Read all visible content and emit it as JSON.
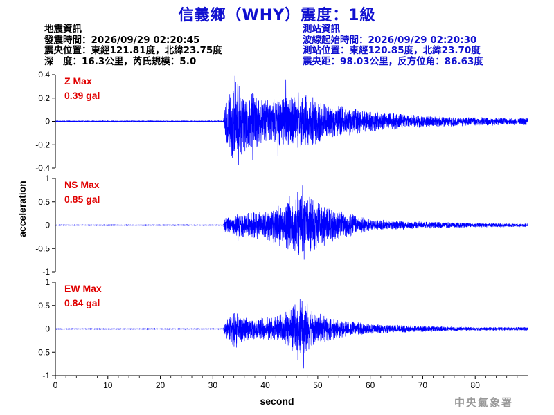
{
  "header": {
    "title": "信義鄉（WHY）震度：1級",
    "quake_info": {
      "heading": "地震資訊",
      "origin_time": "發震時間：2026/09/29 02:20:45",
      "epicenter": "震央位置：東經121.81度，北緯23.75度",
      "depth_magnitude": "深　度：16.3公里，芮氏規模：5.0"
    },
    "station_info": {
      "heading": "測站資訊",
      "onset_time": "波線起始時間：2026/09/29 02:20:30",
      "station_location": "測站位置：東經120.85度，北緯23.70度",
      "distance_azimuth": "震央距：98.03公里，反方位角：86.63度"
    }
  },
  "credit": "中央氣象署",
  "colors": {
    "title": "#1010d0",
    "trace": "#0000ff",
    "max_label": "#e00000"
  },
  "chart_data": {
    "type": "line",
    "xlabel": "second",
    "ylabel": "acceleration",
    "xlim": [
      0,
      90
    ],
    "xticks": [
      0,
      10,
      20,
      30,
      40,
      50,
      60,
      70,
      80
    ],
    "grid": false,
    "panels": [
      {
        "name": "Z",
        "max_label": "Z Max",
        "max_value": "0.39 gal",
        "ylim": [
          -0.4,
          0.4
        ],
        "yticks": [
          -0.4,
          -0.2,
          0,
          0.2,
          0.4
        ],
        "ytick_labels": [
          "-0.4",
          "-0.2",
          "0",
          "0.2",
          "0.4"
        ],
        "noise_amplitude": 0.004,
        "envelope": [
          [
            0,
            0.004
          ],
          [
            32,
            0.004
          ],
          [
            32.3,
            0.12
          ],
          [
            34,
            0.3
          ],
          [
            36,
            0.22
          ],
          [
            40,
            0.15
          ],
          [
            44,
            0.17
          ],
          [
            47,
            0.2
          ],
          [
            52,
            0.12
          ],
          [
            60,
            0.07
          ],
          [
            70,
            0.04
          ],
          [
            80,
            0.03
          ],
          [
            90,
            0.025
          ]
        ],
        "peaks": [
          [
            34.2,
            0.39
          ],
          [
            34.9,
            -0.37
          ],
          [
            43.9,
            0.36
          ],
          [
            42.4,
            -0.3
          ],
          [
            37.6,
            -0.33
          ]
        ]
      },
      {
        "name": "NS",
        "max_label": "NS Max",
        "max_value": "0.85 gal",
        "ylim": [
          -1,
          1
        ],
        "yticks": [
          -1,
          -0.5,
          0,
          0.5,
          1
        ],
        "ytick_labels": [
          "-1",
          "-0.5",
          "0",
          "0.5",
          "1"
        ],
        "noise_amplitude": 0.005,
        "envelope": [
          [
            0,
            0.005
          ],
          [
            32,
            0.005
          ],
          [
            32.3,
            0.12
          ],
          [
            35,
            0.2
          ],
          [
            40,
            0.25
          ],
          [
            44,
            0.4
          ],
          [
            47,
            0.6
          ],
          [
            49,
            0.45
          ],
          [
            52,
            0.3
          ],
          [
            60,
            0.1
          ],
          [
            70,
            0.06
          ],
          [
            80,
            0.04
          ],
          [
            90,
            0.03
          ]
        ],
        "peaks": [
          [
            47.1,
            0.85
          ],
          [
            47.4,
            -0.74
          ],
          [
            44.6,
            0.62
          ],
          [
            48.6,
            -0.56
          ],
          [
            34.8,
            -0.35
          ]
        ]
      },
      {
        "name": "EW",
        "max_label": "EW Max",
        "max_value": "0.84 gal",
        "ylim": [
          -1,
          1
        ],
        "yticks": [
          -1,
          -0.5,
          0,
          0.5,
          1
        ],
        "ytick_labels": [
          "-1",
          "-0.5",
          "0",
          "0.5",
          "1"
        ],
        "noise_amplitude": 0.005,
        "envelope": [
          [
            0,
            0.005
          ],
          [
            32,
            0.005
          ],
          [
            32.3,
            0.15
          ],
          [
            34,
            0.3
          ],
          [
            37,
            0.2
          ],
          [
            42,
            0.2
          ],
          [
            45,
            0.35
          ],
          [
            47,
            0.55
          ],
          [
            49,
            0.3
          ],
          [
            52,
            0.2
          ],
          [
            60,
            0.08
          ],
          [
            70,
            0.05
          ],
          [
            80,
            0.03
          ],
          [
            90,
            0.03
          ]
        ],
        "peaks": [
          [
            47.0,
            0.6
          ],
          [
            47.3,
            -0.84
          ],
          [
            46.2,
            -0.66
          ],
          [
            34.5,
            -0.4
          ],
          [
            50.5,
            0.32
          ]
        ]
      }
    ]
  }
}
